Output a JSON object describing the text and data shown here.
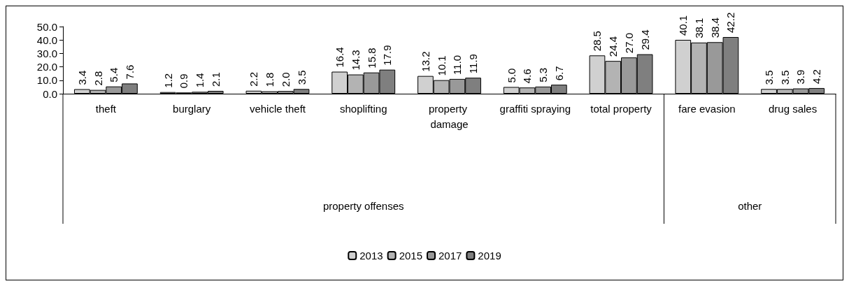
{
  "chart_data": {
    "type": "bar",
    "categories": [
      "theft",
      "burglary",
      "vehicle theft",
      "shoplifting",
      "property damage",
      "graffiti spraying",
      "total property",
      "fare evasion",
      "drug sales"
    ],
    "series": [
      {
        "name": "2013",
        "color": "#d0d0d0",
        "values": [
          3.4,
          1.2,
          2.2,
          16.4,
          13.2,
          5.0,
          28.5,
          40.1,
          3.5
        ],
        "value_labels": [
          "3.4",
          "1.2",
          "2.2",
          "16.4",
          "13.2",
          "5.0",
          "28.5",
          "40.1",
          "3.5"
        ]
      },
      {
        "name": "2015",
        "color": "#b3b3b3",
        "values": [
          2.8,
          0.9,
          1.8,
          14.3,
          10.1,
          4.6,
          24.4,
          38.1,
          3.5
        ],
        "value_labels": [
          "2.8",
          "0.9",
          "1.8",
          "14.3",
          "10.1",
          "4.6",
          "24.4",
          "38.1",
          "3.5"
        ]
      },
      {
        "name": "2017",
        "color": "#999999",
        "values": [
          5.4,
          1.4,
          2.0,
          15.8,
          11.0,
          5.3,
          27.0,
          38.4,
          3.9
        ],
        "value_labels": [
          "5.4",
          "1.4",
          "2.0",
          "15.8",
          "11.0",
          "5.3",
          "27.0",
          "38.4",
          "3.9"
        ]
      },
      {
        "name": "2019",
        "color": "#7f7f7f",
        "values": [
          7.6,
          2.1,
          3.5,
          17.9,
          11.9,
          6.7,
          29.4,
          42.2,
          4.2
        ],
        "value_labels": [
          "7.6",
          "2.1",
          "3.5",
          "17.9",
          "11.9",
          "6.7",
          "29.4",
          "42.2",
          "4.2"
        ]
      }
    ],
    "ylim": [
      0,
      50
    ],
    "yticks": [
      {
        "value": 0,
        "label": "0.0"
      },
      {
        "value": 10,
        "label": "10.0"
      },
      {
        "value": 20,
        "label": "20.0"
      },
      {
        "value": 30,
        "label": "30.0"
      },
      {
        "value": 40,
        "label": "40.0"
      },
      {
        "value": 50,
        "label": "50.0"
      }
    ],
    "annotations": [
      "property offenses",
      "other"
    ],
    "grid": false,
    "legend": "bottom"
  }
}
